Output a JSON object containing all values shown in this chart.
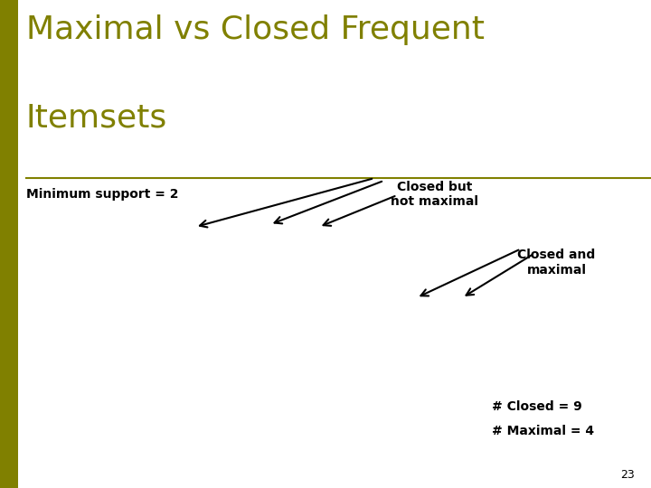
{
  "title_line1": "Maximal vs Closed Frequent",
  "title_line2": "Itemsets",
  "title_color": "#808000",
  "title_fontsize": 26,
  "bg_color": "#ffffff",
  "left_bar_color": "#808000",
  "separator_color": "#808000",
  "min_support_text": "Minimum support = 2",
  "min_support_fontsize": 10,
  "closed_not_maximal_label": "Closed but\nnot maximal",
  "closed_and_maximal_label": "Closed and\nmaximal",
  "closed_count_label": "# Closed = 9",
  "maximal_count_label": "# Maximal = 4",
  "page_number": "23",
  "text_fontsize": 10
}
